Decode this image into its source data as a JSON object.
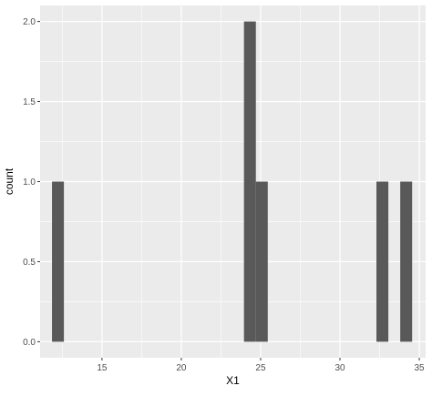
{
  "chart_data": {
    "type": "bar",
    "title": "",
    "xlabel": "X1",
    "ylabel": "count",
    "xlim": [
      11.1,
      35.4
    ],
    "ylim": [
      -0.1,
      2.1
    ],
    "x_ticks": [
      15,
      20,
      25,
      30,
      35
    ],
    "x_tick_labels": [
      "15",
      "20",
      "25",
      "30",
      "35"
    ],
    "y_ticks": [
      0,
      0.5,
      1,
      1.5,
      2
    ],
    "y_tick_labels": [
      "0.0",
      "0.5",
      "1.0",
      "1.5",
      "2.0"
    ],
    "grid": true,
    "bin_width": 0.75,
    "bins": [
      {
        "x_start": 11.85,
        "x_end": 12.6,
        "count": 1
      },
      {
        "x_start": 23.95,
        "x_end": 24.7,
        "count": 2
      },
      {
        "x_start": 24.7,
        "x_end": 25.45,
        "count": 1
      },
      {
        "x_start": 32.3,
        "x_end": 33.05,
        "count": 1
      },
      {
        "x_start": 33.8,
        "x_end": 34.55,
        "count": 1
      }
    ],
    "colors": {
      "panel_background": "#ebebeb",
      "grid_major": "#ffffff",
      "bar_fill": "#595959",
      "tick_label": "#4d4d4d",
      "axis_title": "#000000"
    }
  }
}
